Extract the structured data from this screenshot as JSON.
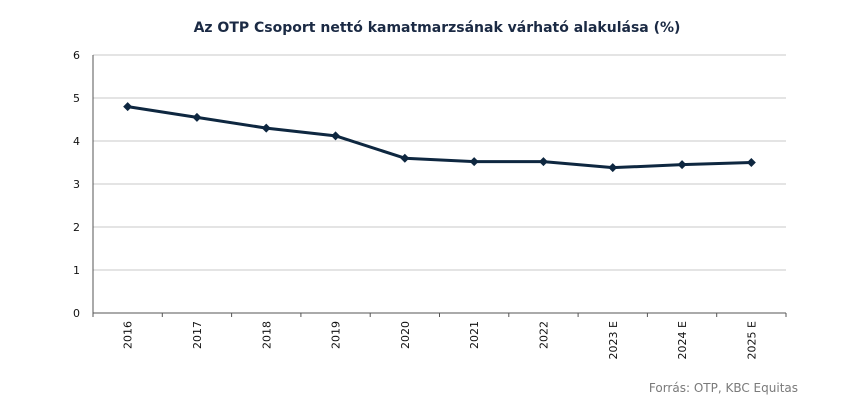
{
  "chart_data": {
    "type": "line",
    "title": "Az OTP Csoport nettó kamatmarzsának várható alakulása (%)",
    "categories": [
      "2016",
      "2017",
      "2018",
      "2019",
      "2020",
      "2021",
      "2022",
      "2023 E",
      "2024 E",
      "2025 E"
    ],
    "series": [
      {
        "values": [
          4.8,
          4.55,
          4.3,
          4.12,
          3.6,
          3.52,
          3.52,
          3.38,
          3.45,
          3.5
        ]
      }
    ],
    "ylim": [
      0,
      6
    ],
    "yticks": [
      0,
      1,
      2,
      3,
      4,
      5,
      6
    ],
    "grid": true,
    "legend": "none",
    "line_color": "#0e2740",
    "marker": "diamond"
  },
  "source": "Forrás: OTP, KBC Equitas"
}
